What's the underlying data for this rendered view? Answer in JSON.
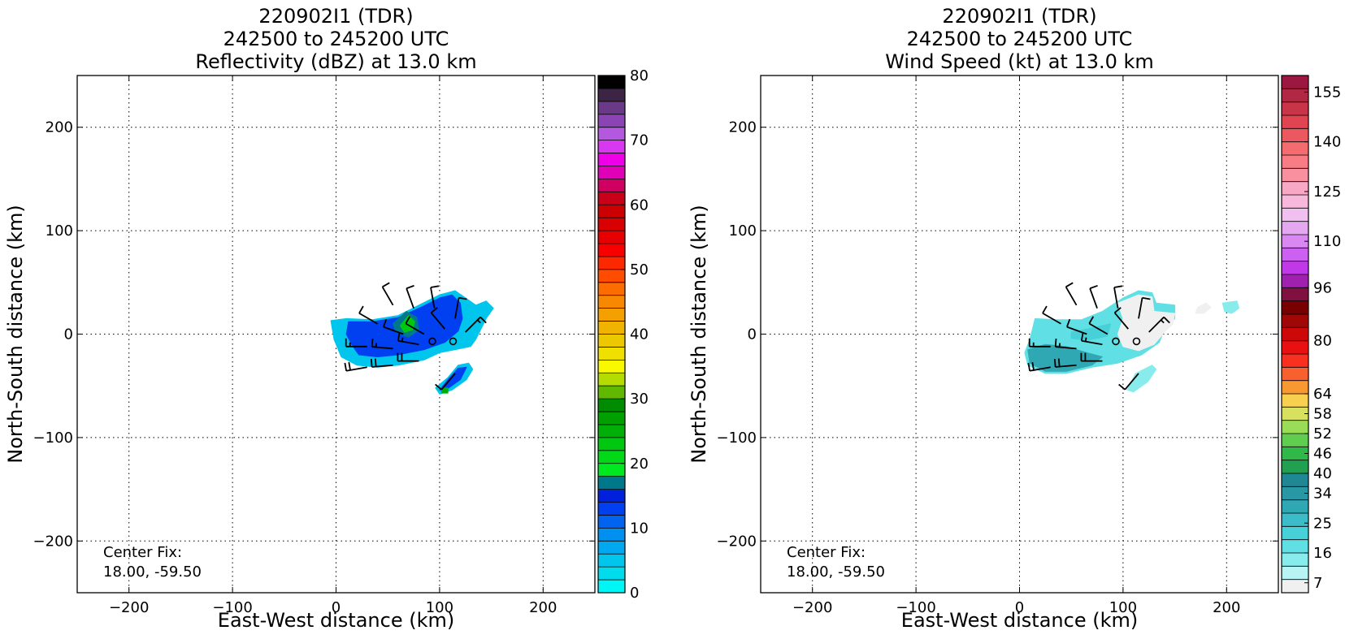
{
  "chart_data": [
    {
      "type": "heatmap",
      "title_lines": [
        "220902I1 (TDR)",
        "242500 to 245200 UTC",
        "Reflectivity (dBZ) at 13.0 km"
      ],
      "xlabel": "East-West distance (km)",
      "ylabel": "North-South distance (km)",
      "xlim": [
        -250,
        250
      ],
      "ylim": [
        -250,
        250
      ],
      "xticks": [
        -200,
        -100,
        0,
        100,
        200
      ],
      "yticks": [
        -200,
        -100,
        0,
        100,
        200
      ],
      "grid": true,
      "center_fix_label": "Center Fix:",
      "center_fix_value": "18.00, -59.50",
      "colorbar": {
        "min": 0,
        "max": 80,
        "tick_values": [
          0,
          10,
          20,
          30,
          40,
          50,
          60,
          70,
          80
        ],
        "tick_labels": [
          "0",
          "10",
          "20",
          "30",
          "40",
          "50",
          "60",
          "70",
          "80"
        ],
        "colors": [
          "#00f5f5",
          "#00dcec",
          "#00c5ec",
          "#00a8f0",
          "#0090f0",
          "#0064f0",
          "#0040f0",
          "#0020dc",
          "#00788c",
          "#00e820",
          "#00d818",
          "#00c810",
          "#00b008",
          "#00a000",
          "#008c00",
          "#60b800",
          "#b4dc00",
          "#f8f800",
          "#f0e000",
          "#ecc800",
          "#f0b400",
          "#f4a000",
          "#f88800",
          "#fc6c00",
          "#ff4c00",
          "#fc2800",
          "#f80000",
          "#e80000",
          "#d80000",
          "#cc0000",
          "#c80018",
          "#d00060",
          "#e000b8",
          "#f000e8",
          "#d838f0",
          "#b458e0",
          "#8a44b4",
          "#6a3a88",
          "#3c2444",
          "#000000"
        ]
      },
      "reflectivity_regions": [
        {
          "band": 2,
          "points": [
            [
              -5,
              13
            ],
            [
              10,
              15
            ],
            [
              35,
              14
            ],
            [
              60,
              18
            ],
            [
              80,
              28
            ],
            [
              100,
              38
            ],
            [
              115,
              42
            ],
            [
              125,
              35
            ],
            [
              135,
              28
            ],
            [
              145,
              32
            ],
            [
              152,
              25
            ],
            [
              145,
              15
            ],
            [
              140,
              5
            ],
            [
              135,
              -5
            ],
            [
              130,
              -12
            ],
            [
              115,
              -15
            ],
            [
              100,
              -18
            ],
            [
              85,
              -25
            ],
            [
              60,
              -30
            ],
            [
              40,
              -32
            ],
            [
              20,
              -30
            ],
            [
              5,
              -22
            ],
            [
              -2,
              -5
            ]
          ]
        },
        {
          "band": 6,
          "points": [
            [
              12,
              12
            ],
            [
              35,
              12
            ],
            [
              60,
              16
            ],
            [
              82,
              26
            ],
            [
              100,
              35
            ],
            [
              112,
              38
            ],
            [
              120,
              30
            ],
            [
              122,
              15
            ],
            [
              118,
              3
            ],
            [
              105,
              -8
            ],
            [
              85,
              -15
            ],
            [
              60,
              -20
            ],
            [
              40,
              -22
            ],
            [
              22,
              -20
            ],
            [
              15,
              -10
            ],
            [
              10,
              0
            ]
          ]
        },
        {
          "band": 8,
          "points": [
            [
              55,
              10
            ],
            [
              68,
              22
            ],
            [
              78,
              16
            ],
            [
              80,
              4
            ],
            [
              70,
              -3
            ],
            [
              58,
              2
            ]
          ]
        },
        {
          "band": 11,
          "points": [
            [
              62,
              8
            ],
            [
              70,
              18
            ],
            [
              76,
              12
            ],
            [
              74,
              4
            ],
            [
              66,
              2
            ]
          ]
        },
        {
          "band": 2,
          "points": [
            [
              108,
              -42
            ],
            [
              118,
              -30
            ],
            [
              128,
              -28
            ],
            [
              132,
              -34
            ],
            [
              126,
              -44
            ],
            [
              112,
              -54
            ],
            [
              100,
              -58
            ],
            [
              96,
              -52
            ]
          ]
        },
        {
          "band": 6,
          "points": [
            [
              108,
              -44
            ],
            [
              118,
              -33
            ],
            [
              126,
              -32
            ],
            [
              120,
              -44
            ],
            [
              106,
              -54
            ],
            [
              100,
              -54
            ]
          ]
        },
        {
          "band": 12,
          "points": [
            [
              102,
              -52
            ],
            [
              108,
              -52
            ],
            [
              108,
              -57
            ],
            [
              102,
              -57
            ]
          ]
        }
      ],
      "wind_barbs": [
        {
          "x": 55,
          "y": 28,
          "dir": 330,
          "speed": 10
        },
        {
          "x": 75,
          "y": 25,
          "dir": 340,
          "speed": 10
        },
        {
          "x": 95,
          "y": 25,
          "dir": 350,
          "speed": 10
        },
        {
          "x": 115,
          "y": 15,
          "dir": 10,
          "speed": 10
        },
        {
          "x": 125,
          "y": 2,
          "dir": 45,
          "speed": 15
        },
        {
          "x": 40,
          "y": 10,
          "dir": 300,
          "speed": 10
        },
        {
          "x": 65,
          "y": 0,
          "dir": 290,
          "speed": 10
        },
        {
          "x": 85,
          "y": 0,
          "dir": 300,
          "speed": 10
        },
        {
          "x": 105,
          "y": 5,
          "dir": 320,
          "speed": 10
        },
        {
          "x": 30,
          "y": -12,
          "dir": 270,
          "speed": 15
        },
        {
          "x": 55,
          "y": -14,
          "dir": 275,
          "speed": 15
        },
        {
          "x": 80,
          "y": -10,
          "dir": 280,
          "speed": 15
        },
        {
          "x": 30,
          "y": -32,
          "dir": 260,
          "speed": 20
        },
        {
          "x": 55,
          "y": -30,
          "dir": 265,
          "speed": 20
        },
        {
          "x": 80,
          "y": -26,
          "dir": 270,
          "speed": 20
        },
        {
          "x": 115,
          "y": -38,
          "dir": 220,
          "speed": 10
        }
      ],
      "markers": [
        {
          "x": 93,
          "y": -7
        },
        {
          "x": 113,
          "y": -7
        }
      ]
    },
    {
      "type": "heatmap",
      "title_lines": [
        "220902I1 (TDR)",
        "242500 to 245200 UTC",
        "Wind Speed (kt) at 13.0 km"
      ],
      "xlabel": "East-West distance (km)",
      "ylabel": "North-South distance (km)",
      "xlim": [
        -250,
        250
      ],
      "ylim": [
        -250,
        250
      ],
      "xticks": [
        -200,
        -100,
        0,
        100,
        200
      ],
      "yticks": [
        -200,
        -100,
        0,
        100,
        200
      ],
      "grid": true,
      "center_fix_label": "Center Fix:",
      "center_fix_value": "18.00, -59.50",
      "colorbar": {
        "min": 4,
        "max": 160,
        "tick_values": [
          7,
          16,
          25,
          34,
          40,
          46,
          52,
          58,
          64,
          80,
          96,
          110,
          125,
          140,
          155
        ],
        "tick_labels": [
          "7",
          "16",
          "25",
          "34",
          "40",
          "46",
          "52",
          "58",
          "64",
          "80",
          "96",
          "110",
          "125",
          "140",
          "155"
        ],
        "colors": [
          "#f0f0f0",
          "#b8f4f4",
          "#88ecec",
          "#60e0e4",
          "#48d0d8",
          "#3cbcc8",
          "#30a8b4",
          "#2898a4",
          "#208894",
          "#20a050",
          "#30b848",
          "#60cc50",
          "#98dc58",
          "#d8e060",
          "#f8d050",
          "#f89830",
          "#f86030",
          "#f83020",
          "#e81010",
          "#cc0808",
          "#a00808",
          "#780000",
          "#801040",
          "#a020b0",
          "#c038e8",
          "#cc60f0",
          "#d888f0",
          "#e4a8f0",
          "#f0c0f0",
          "#f8b8dc",
          "#f8a8c4",
          "#f890a0",
          "#f87c84",
          "#f46c70",
          "#ec5860",
          "#e04450",
          "#c83448",
          "#b02844",
          "#9c1840"
        ]
      },
      "wind_regions": [
        {
          "band": 3,
          "points": [
            [
              15,
              15
            ],
            [
              35,
              14
            ],
            [
              60,
              14
            ],
            [
              80,
              22
            ],
            [
              100,
              35
            ],
            [
              115,
              42
            ],
            [
              128,
              40
            ],
            [
              132,
              30
            ],
            [
              150,
              28
            ],
            [
              150,
              15
            ],
            [
              140,
              5
            ],
            [
              135,
              -8
            ],
            [
              118,
              -20
            ],
            [
              95,
              -28
            ],
            [
              70,
              -32
            ],
            [
              45,
              -38
            ],
            [
              25,
              -38
            ],
            [
              8,
              -30
            ],
            [
              5,
              -18
            ],
            [
              10,
              -5
            ]
          ]
        },
        {
          "band": 0,
          "points": [
            [
              95,
              30
            ],
            [
              115,
              38
            ],
            [
              128,
              36
            ],
            [
              130,
              22
            ],
            [
              150,
              20
            ],
            [
              148,
              10
            ],
            [
              140,
              2
            ],
            [
              130,
              -10
            ],
            [
              115,
              -16
            ],
            [
              100,
              -12
            ],
            [
              95,
              0
            ],
            [
              100,
              15
            ]
          ]
        },
        {
          "band": 6,
          "points": [
            [
              8,
              -15
            ],
            [
              25,
              -10
            ],
            [
              45,
              -12
            ],
            [
              65,
              -18
            ],
            [
              80,
              -22
            ],
            [
              70,
              -30
            ],
            [
              45,
              -36
            ],
            [
              25,
              -36
            ],
            [
              10,
              -28
            ]
          ]
        },
        {
          "band": 4,
          "points": [
            [
              50,
              2
            ],
            [
              70,
              6
            ],
            [
              88,
              10
            ],
            [
              85,
              -2
            ],
            [
              65,
              -6
            ],
            [
              50,
              -4
            ]
          ]
        },
        {
          "band": 0,
          "points": [
            [
              172,
              26
            ],
            [
              180,
              30
            ],
            [
              185,
              26
            ],
            [
              178,
              20
            ],
            [
              170,
              20
            ]
          ]
        },
        {
          "band": 2,
          "points": [
            [
              196,
              30
            ],
            [
              210,
              32
            ],
            [
              212,
              25
            ],
            [
              205,
              20
            ],
            [
              198,
              22
            ]
          ]
        },
        {
          "band": 2,
          "points": [
            [
              112,
              -38
            ],
            [
              128,
              -30
            ],
            [
              132,
              -34
            ],
            [
              124,
              -46
            ],
            [
              110,
              -56
            ],
            [
              104,
              -54
            ]
          ]
        }
      ],
      "wind_barbs": [
        {
          "x": 55,
          "y": 28,
          "dir": 330,
          "speed": 10
        },
        {
          "x": 75,
          "y": 25,
          "dir": 340,
          "speed": 10
        },
        {
          "x": 95,
          "y": 25,
          "dir": 350,
          "speed": 10
        },
        {
          "x": 115,
          "y": 15,
          "dir": 10,
          "speed": 10
        },
        {
          "x": 125,
          "y": 2,
          "dir": 45,
          "speed": 15
        },
        {
          "x": 40,
          "y": 10,
          "dir": 300,
          "speed": 10
        },
        {
          "x": 65,
          "y": 0,
          "dir": 290,
          "speed": 10
        },
        {
          "x": 85,
          "y": 0,
          "dir": 300,
          "speed": 10
        },
        {
          "x": 105,
          "y": 5,
          "dir": 320,
          "speed": 10
        },
        {
          "x": 30,
          "y": -12,
          "dir": 270,
          "speed": 15
        },
        {
          "x": 55,
          "y": -14,
          "dir": 275,
          "speed": 15
        },
        {
          "x": 80,
          "y": -10,
          "dir": 280,
          "speed": 15
        },
        {
          "x": 30,
          "y": -32,
          "dir": 260,
          "speed": 20
        },
        {
          "x": 55,
          "y": -30,
          "dir": 265,
          "speed": 20
        },
        {
          "x": 80,
          "y": -26,
          "dir": 270,
          "speed": 20
        },
        {
          "x": 115,
          "y": -38,
          "dir": 220,
          "speed": 10
        }
      ],
      "markers": [
        {
          "x": 93,
          "y": -7
        },
        {
          "x": 113,
          "y": -7
        }
      ]
    }
  ]
}
